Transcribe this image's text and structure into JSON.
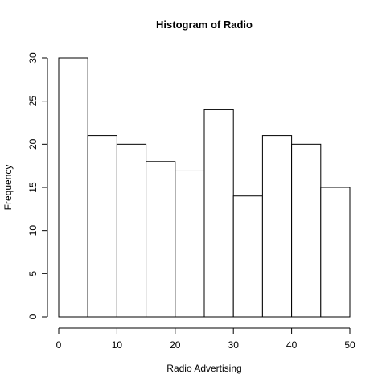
{
  "chart_data": {
    "type": "bar",
    "title": "Histogram of Radio",
    "xlabel": "Radio Advertising",
    "ylabel": "Frequency",
    "bins": [
      {
        "from": 0,
        "to": 5,
        "count": 30
      },
      {
        "from": 5,
        "to": 10,
        "count": 21
      },
      {
        "from": 10,
        "to": 15,
        "count": 20
      },
      {
        "from": 15,
        "to": 20,
        "count": 18
      },
      {
        "from": 20,
        "to": 25,
        "count": 17
      },
      {
        "from": 25,
        "to": 30,
        "count": 24
      },
      {
        "from": 30,
        "to": 35,
        "count": 14
      },
      {
        "from": 35,
        "to": 40,
        "count": 21
      },
      {
        "from": 40,
        "to": 45,
        "count": 20
      },
      {
        "from": 45,
        "to": 50,
        "count": 15
      }
    ],
    "xlim": [
      0,
      50
    ],
    "ylim": [
      0,
      30
    ],
    "x_ticks": [
      "0",
      "10",
      "20",
      "30",
      "40",
      "50"
    ],
    "y_ticks": [
      "0",
      "5",
      "10",
      "15",
      "20",
      "25",
      "30"
    ],
    "grid": false,
    "bar_fill": "#ffffff",
    "bar_stroke": "#000000"
  }
}
